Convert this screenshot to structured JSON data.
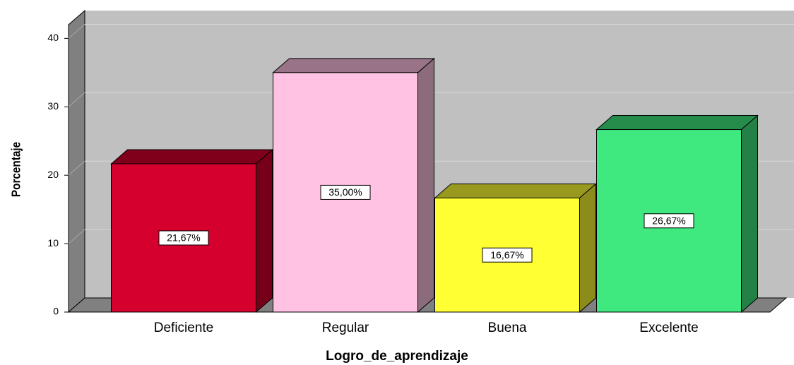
{
  "chart_data": {
    "type": "bar3d",
    "x_label": "Logro_de_aprendizaje",
    "y_label": "Porcentaje",
    "categories": [
      "Deficiente",
      "Regular",
      "Buena",
      "Excelente"
    ],
    "values": [
      21.67,
      35,
      16.67,
      26.67
    ],
    "value_labels": [
      "21,67%",
      "35,00%",
      "16,67%",
      "26,67%"
    ],
    "colors": [
      "#d6002e",
      "#ffc2e2",
      "#ffff33",
      "#40e97f"
    ],
    "ylim": [
      0,
      42
    ],
    "yticks": [
      0,
      10,
      20,
      30,
      40
    ],
    "grid": true
  }
}
